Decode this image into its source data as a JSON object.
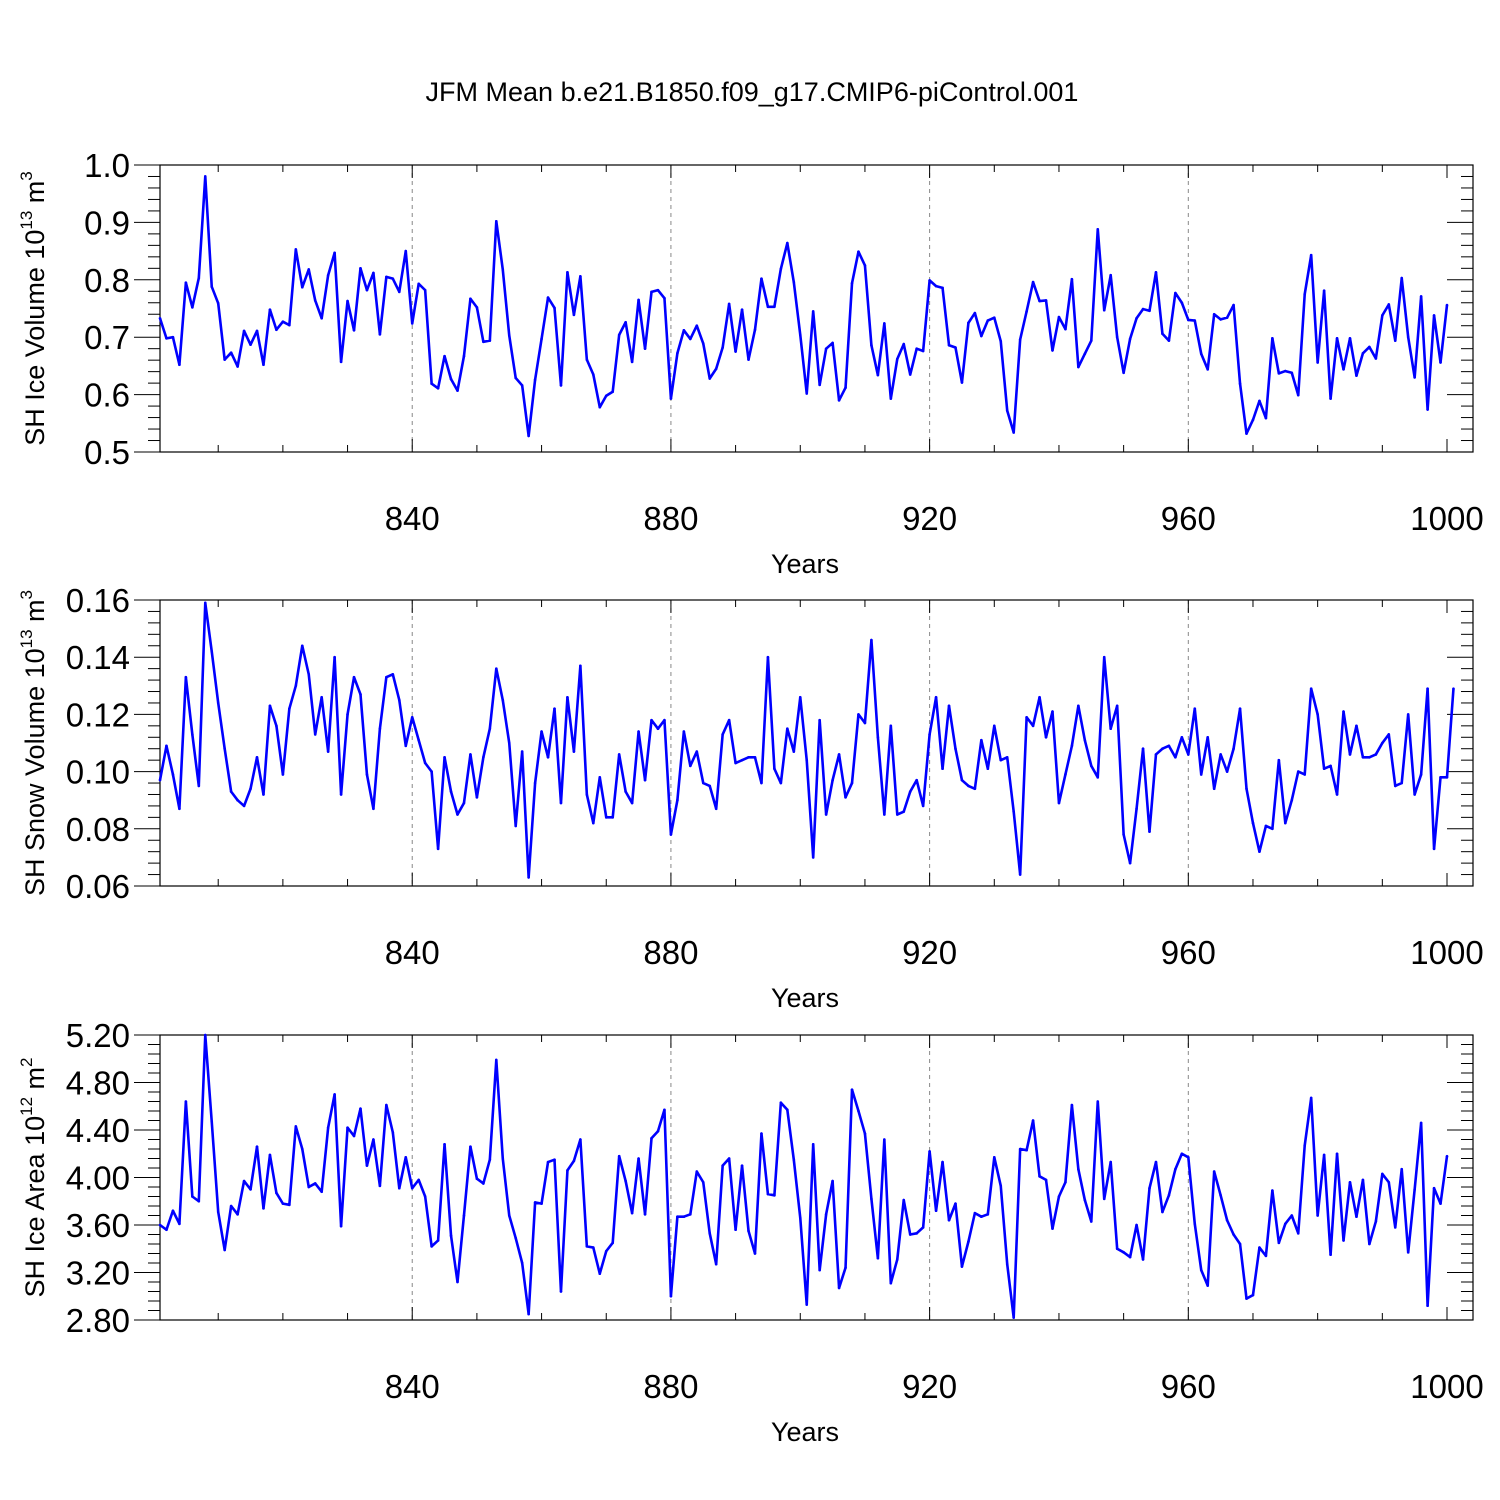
{
  "figure": {
    "title": "JFM Mean b.e21.B1850.f09_g17.CMIP6-piControl.001"
  },
  "style": {
    "line_color": "#0000ff",
    "axis_color": "#000000",
    "grid_color": "#888888"
  },
  "chart_data": [
    {
      "type": "line",
      "xlabel": "Years",
      "ylabel": {
        "main": "SH Ice Volume 10",
        "exp": "13",
        "unit": " m",
        "unit_exp": "3"
      },
      "xlim": [
        801,
        1000
      ],
      "ylim": [
        0.5,
        1.0
      ],
      "xticks": [
        840,
        880,
        920,
        960,
        1000
      ],
      "xtick_labels": [
        "840",
        "880",
        "920",
        "960",
        "1000"
      ],
      "yticks": [
        0.5,
        0.6,
        0.7,
        0.8,
        0.9,
        1.0
      ],
      "ytick_labels": [
        "0.5",
        "0.6",
        "0.7",
        "0.8",
        "0.9",
        "1.0"
      ],
      "y_minor_step": 0.02,
      "x_minor_step": 10,
      "grid": "vertical dashed at major x ticks",
      "series": [
        {
          "x_start": 801,
          "x_step": 1,
          "values": [
            0.733,
            0.698,
            0.7,
            0.652,
            0.795,
            0.752,
            0.803,
            0.98,
            0.788,
            0.759,
            0.661,
            0.673,
            0.649,
            0.711,
            0.687,
            0.711,
            0.652,
            0.748,
            0.713,
            0.727,
            0.721,
            0.853,
            0.787,
            0.818,
            0.764,
            0.733,
            0.808,
            0.847,
            0.657,
            0.763,
            0.712,
            0.82,
            0.782,
            0.812,
            0.705,
            0.805,
            0.802,
            0.779,
            0.85,
            0.724,
            0.793,
            0.782,
            0.619,
            0.611,
            0.667,
            0.627,
            0.607,
            0.667,
            0.767,
            0.752,
            0.692,
            0.694,
            0.902,
            0.818,
            0.703,
            0.629,
            0.616,
            0.528,
            0.626,
            0.697,
            0.769,
            0.751,
            0.616,
            0.813,
            0.739,
            0.806,
            0.661,
            0.635,
            0.578,
            0.598,
            0.605,
            0.704,
            0.726,
            0.657,
            0.765,
            0.68,
            0.779,
            0.782,
            0.768,
            0.593,
            0.672,
            0.712,
            0.697,
            0.72,
            0.689,
            0.628,
            0.645,
            0.682,
            0.758,
            0.675,
            0.748,
            0.661,
            0.713,
            0.802,
            0.753,
            0.753,
            0.819,
            0.864,
            0.796,
            0.704,
            0.602,
            0.745,
            0.617,
            0.68,
            0.69,
            0.59,
            0.612,
            0.794,
            0.849,
            0.825,
            0.686,
            0.634,
            0.724,
            0.593,
            0.662,
            0.688,
            0.635,
            0.68,
            0.676,
            0.799,
            0.789,
            0.786,
            0.686,
            0.682,
            0.621,
            0.725,
            0.742,
            0.702,
            0.729,
            0.734,
            0.693,
            0.572,
            0.534,
            0.696,
            0.745,
            0.796,
            0.763,
            0.764,
            0.677,
            0.735,
            0.714,
            0.801,
            0.648,
            0.671,
            0.694,
            0.888,
            0.747,
            0.808,
            0.7,
            0.638,
            0.697,
            0.733,
            0.749,
            0.746,
            0.813,
            0.706,
            0.694,
            0.777,
            0.76,
            0.73,
            0.729,
            0.671,
            0.644,
            0.74,
            0.731,
            0.734,
            0.756,
            0.619,
            0.532,
            0.556,
            0.589,
            0.559,
            0.698,
            0.637,
            0.641,
            0.638,
            0.599,
            0.775,
            0.843,
            0.656,
            0.781,
            0.593,
            0.698,
            0.644,
            0.698,
            0.633,
            0.672,
            0.683,
            0.663,
            0.738,
            0.757,
            0.694,
            0.803,
            0.7,
            0.63,
            0.771,
            0.574,
            0.738,
            0.656,
            0.756
          ]
        }
      ]
    },
    {
      "type": "line",
      "xlabel": "Years",
      "ylabel": {
        "main": "SH Snow Volume 10",
        "exp": "13",
        "unit": " m",
        "unit_exp": "3"
      },
      "xlim": [
        801,
        1000
      ],
      "ylim": [
        0.06,
        0.16
      ],
      "xticks": [
        840,
        880,
        920,
        960,
        1000
      ],
      "xtick_labels": [
        "840",
        "880",
        "920",
        "960",
        "1000"
      ],
      "yticks": [
        0.06,
        0.08,
        0.1,
        0.12,
        0.14,
        0.16
      ],
      "ytick_labels": [
        "0.06",
        "0.08",
        "0.10",
        "0.12",
        "0.14",
        "0.16"
      ],
      "y_minor_step": 0.004,
      "x_minor_step": 10,
      "grid": "vertical dashed at major x ticks",
      "series": [
        {
          "x_start": 801,
          "x_step": 1,
          "values": [
            0.097,
            0.109,
            0.099,
            0.087,
            0.133,
            0.113,
            0.095,
            0.159,
            0.142,
            0.124,
            0.108,
            0.093,
            0.09,
            0.088,
            0.094,
            0.105,
            0.092,
            0.123,
            0.116,
            0.099,
            0.122,
            0.13,
            0.144,
            0.134,
            0.113,
            0.126,
            0.107,
            0.14,
            0.092,
            0.12,
            0.133,
            0.127,
            0.099,
            0.087,
            0.115,
            0.133,
            0.134,
            0.125,
            0.109,
            0.119,
            0.111,
            0.103,
            0.1,
            0.073,
            0.105,
            0.093,
            0.085,
            0.089,
            0.106,
            0.091,
            0.105,
            0.115,
            0.136,
            0.125,
            0.11,
            0.081,
            0.107,
            0.063,
            0.096,
            0.114,
            0.105,
            0.122,
            0.089,
            0.126,
            0.107,
            0.137,
            0.092,
            0.082,
            0.098,
            0.084,
            0.084,
            0.106,
            0.093,
            0.089,
            0.114,
            0.097,
            0.118,
            0.115,
            0.118,
            0.078,
            0.09,
            0.114,
            0.102,
            0.107,
            0.096,
            0.095,
            0.087,
            0.113,
            0.118,
            0.103,
            0.104,
            0.105,
            0.105,
            0.096,
            0.14,
            0.101,
            0.096,
            0.115,
            0.107,
            0.126,
            0.104,
            0.07,
            0.118,
            0.085,
            0.097,
            0.106,
            0.091,
            0.096,
            0.12,
            0.117,
            0.146,
            0.112,
            0.085,
            0.116,
            0.085,
            0.086,
            0.093,
            0.097,
            0.088,
            0.113,
            0.126,
            0.101,
            0.123,
            0.108,
            0.097,
            0.095,
            0.094,
            0.111,
            0.101,
            0.116,
            0.104,
            0.105,
            0.086,
            0.064,
            0.119,
            0.116,
            0.126,
            0.112,
            0.121,
            0.089,
            0.099,
            0.109,
            0.123,
            0.111,
            0.102,
            0.098,
            0.14,
            0.115,
            0.123,
            0.078,
            0.068,
            0.087,
            0.108,
            0.079,
            0.106,
            0.108,
            0.109,
            0.105,
            0.112,
            0.106,
            0.122,
            0.099,
            0.112,
            0.094,
            0.106,
            0.1,
            0.108,
            0.122,
            0.094,
            0.082,
            0.072,
            0.081,
            0.08,
            0.104,
            0.082,
            0.09,
            0.1,
            0.099,
            0.129,
            0.12,
            0.101,
            0.102,
            0.092,
            0.121,
            0.106,
            0.116,
            0.105,
            0.105,
            0.106,
            0.11,
            0.113,
            0.095,
            0.096,
            0.12,
            0.092,
            0.099,
            0.129,
            0.073,
            0.098,
            0.098,
            0.129
          ]
        }
      ]
    },
    {
      "type": "line",
      "xlabel": "Years",
      "ylabel": {
        "main": "SH Ice Area 10",
        "exp": "12",
        "unit": " m",
        "unit_exp": "2"
      },
      "xlim": [
        801,
        1000
      ],
      "ylim": [
        2.8,
        5.2
      ],
      "xticks": [
        840,
        880,
        920,
        960,
        1000
      ],
      "xtick_labels": [
        "840",
        "880",
        "920",
        "960",
        "1000"
      ],
      "yticks": [
        2.8,
        3.2,
        3.6,
        4.0,
        4.4,
        4.8,
        5.2
      ],
      "ytick_labels": [
        "2.80",
        "3.20",
        "3.60",
        "4.00",
        "4.40",
        "4.80",
        "5.20"
      ],
      "y_minor_step": 0.08,
      "x_minor_step": 10,
      "grid": "vertical dashed at major x ticks",
      "series": [
        {
          "x_start": 801,
          "x_step": 1,
          "values": [
            3.6,
            3.56,
            3.72,
            3.61,
            4.64,
            3.84,
            3.8,
            5.2,
            4.47,
            3.71,
            3.39,
            3.76,
            3.69,
            3.97,
            3.9,
            4.26,
            3.74,
            4.19,
            3.87,
            3.78,
            3.77,
            4.43,
            4.24,
            3.92,
            3.95,
            3.88,
            4.42,
            4.7,
            3.59,
            4.42,
            4.35,
            4.58,
            4.1,
            4.32,
            3.93,
            4.61,
            4.38,
            3.91,
            4.17,
            3.91,
            3.98,
            3.84,
            3.42,
            3.47,
            4.28,
            3.51,
            3.12,
            3.68,
            4.26,
            3.99,
            3.95,
            4.15,
            4.99,
            4.16,
            3.68,
            3.49,
            3.28,
            2.85,
            3.79,
            3.78,
            4.13,
            4.15,
            3.04,
            4.06,
            4.14,
            4.32,
            3.42,
            3.41,
            3.19,
            3.38,
            3.45,
            4.18,
            3.97,
            3.7,
            4.16,
            3.69,
            4.33,
            4.39,
            4.57,
            3.0,
            3.67,
            3.67,
            3.69,
            4.05,
            3.96,
            3.53,
            3.27,
            4.1,
            4.16,
            3.56,
            4.1,
            3.55,
            3.36,
            4.37,
            3.86,
            3.85,
            4.63,
            4.57,
            4.15,
            3.66,
            2.93,
            4.28,
            3.22,
            3.69,
            3.97,
            3.07,
            3.24,
            4.74,
            4.56,
            4.37,
            3.82,
            3.32,
            4.32,
            3.11,
            3.31,
            3.81,
            3.52,
            3.53,
            3.58,
            4.22,
            3.72,
            4.13,
            3.64,
            3.78,
            3.25,
            3.46,
            3.7,
            3.67,
            3.69,
            4.17,
            3.93,
            3.27,
            2.82,
            4.24,
            4.23,
            4.48,
            4.01,
            3.98,
            3.57,
            3.84,
            3.96,
            4.61,
            4.07,
            3.81,
            3.63,
            4.64,
            3.82,
            4.13,
            3.4,
            3.37,
            3.33,
            3.6,
            3.31,
            3.91,
            4.13,
            3.71,
            3.85,
            4.07,
            4.2,
            4.17,
            3.61,
            3.22,
            3.09,
            4.05,
            3.85,
            3.64,
            3.52,
            3.44,
            2.98,
            3.01,
            3.41,
            3.34,
            3.89,
            3.45,
            3.61,
            3.68,
            3.53,
            4.27,
            4.67,
            3.68,
            4.19,
            3.35,
            4.2,
            3.47,
            3.96,
            3.67,
            3.98,
            3.44,
            3.63,
            4.03,
            3.96,
            3.58,
            4.07,
            3.37,
            3.9,
            4.46,
            2.92,
            3.91,
            3.78,
            4.18
          ]
        }
      ]
    }
  ]
}
